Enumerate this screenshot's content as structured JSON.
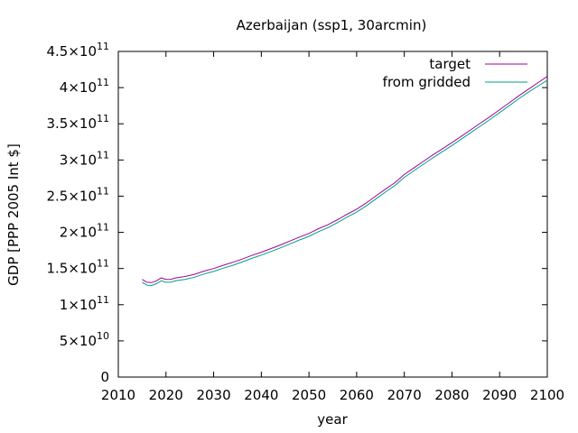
{
  "chart_data": {
    "type": "line",
    "title": "Azerbaijan (ssp1, 30arcmin)",
    "xlabel": "year",
    "ylabel": "GDP [PPP 2005 Int $]",
    "xlim": [
      2010,
      2100
    ],
    "ylim": [
      0,
      450000000000
    ],
    "xticks": [
      2010,
      2020,
      2030,
      2040,
      2050,
      2060,
      2070,
      2080,
      2090,
      2100
    ],
    "xtick_labels": [
      "2010",
      "2020",
      "2030",
      "2040",
      "2050",
      "2060",
      "2070",
      "2080",
      "2090",
      "2100"
    ],
    "yticks": [
      {
        "value": 0,
        "mantissa": "0",
        "exponent": ""
      },
      {
        "value": 50000000000,
        "mantissa": "5×10",
        "exponent": "10"
      },
      {
        "value": 100000000000,
        "mantissa": "1×10",
        "exponent": "11"
      },
      {
        "value": 150000000000,
        "mantissa": "1.5×10",
        "exponent": "11"
      },
      {
        "value": 200000000000,
        "mantissa": "2×10",
        "exponent": "11"
      },
      {
        "value": 250000000000,
        "mantissa": "2.5×10",
        "exponent": "11"
      },
      {
        "value": 300000000000,
        "mantissa": "3×10",
        "exponent": "11"
      },
      {
        "value": 350000000000,
        "mantissa": "3.5×10",
        "exponent": "11"
      },
      {
        "value": 400000000000,
        "mantissa": "4×10",
        "exponent": "11"
      },
      {
        "value": 450000000000,
        "mantissa": "4.5×10",
        "exponent": "11"
      }
    ],
    "grid": false,
    "legend_position": "top-right",
    "series": [
      {
        "name": "target",
        "color": "#a000a0",
        "x": [
          2015,
          2016,
          2017,
          2018,
          2019,
          2020,
          2021,
          2022,
          2024,
          2026,
          2028,
          2030,
          2032,
          2034,
          2036,
          2038,
          2040,
          2042,
          2044,
          2046,
          2048,
          2050,
          2052,
          2054,
          2056,
          2058,
          2060,
          2062,
          2064,
          2066,
          2068,
          2070,
          2072,
          2074,
          2076,
          2078,
          2080,
          2082,
          2084,
          2086,
          2088,
          2090,
          2092,
          2094,
          2096,
          2098,
          2100
        ],
        "y": [
          135000000000,
          131000000000,
          130500000000,
          133000000000,
          137000000000,
          135000000000,
          135000000000,
          137000000000,
          139000000000,
          142000000000,
          146500000000,
          150000000000,
          154500000000,
          158500000000,
          163000000000,
          168000000000,
          172500000000,
          177500000000,
          182500000000,
          188000000000,
          193500000000,
          198500000000,
          205000000000,
          210500000000,
          217500000000,
          225000000000,
          232000000000,
          240500000000,
          250000000000,
          259500000000,
          268500000000,
          280000000000,
          289000000000,
          298000000000,
          307000000000,
          315500000000,
          324000000000,
          333000000000,
          342000000000,
          351000000000,
          360000000000,
          369500000000,
          379000000000,
          388500000000,
          397500000000,
          406500000000,
          415500000000
        ]
      },
      {
        "name": "from gridded",
        "color": "#00a080",
        "x": [
          2015,
          2016,
          2017,
          2018,
          2019,
          2020,
          2021,
          2022,
          2024,
          2026,
          2028,
          2030,
          2032,
          2034,
          2036,
          2038,
          2040,
          2042,
          2044,
          2046,
          2048,
          2050,
          2052,
          2054,
          2056,
          2058,
          2060,
          2062,
          2064,
          2066,
          2068,
          2070,
          2072,
          2074,
          2076,
          2078,
          2080,
          2082,
          2084,
          2086,
          2088,
          2090,
          2092,
          2094,
          2096,
          2098,
          2100
        ],
        "y": [
          131000000000,
          127000000000,
          126500000000,
          129000000000,
          133000000000,
          131000000000,
          131000000000,
          133000000000,
          135000000000,
          138000000000,
          142500000000,
          146000000000,
          150500000000,
          154500000000,
          159000000000,
          164000000000,
          168500000000,
          173500000000,
          178500000000,
          184000000000,
          189500000000,
          194500000000,
          201000000000,
          206500000000,
          213500000000,
          221000000000,
          228000000000,
          236500000000,
          246000000000,
          255500000000,
          264500000000,
          276000000000,
          285000000000,
          294000000000,
          303000000000,
          311500000000,
          320000000000,
          329000000000,
          338000000000,
          347000000000,
          356000000000,
          365500000000,
          375000000000,
          384500000000,
          393500000000,
          402000000000,
          410000000000
        ]
      }
    ]
  }
}
